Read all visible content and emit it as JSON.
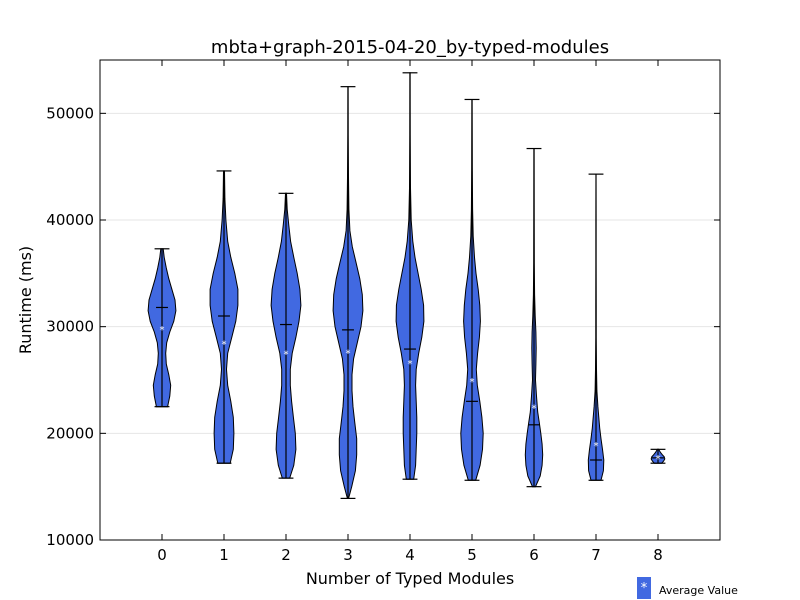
{
  "chart_data": {
    "type": "violin",
    "title": "mbta+graph-2015-04-20_by-typed-modules",
    "xlabel": "Number of Typed Modules",
    "ylabel": "Runtime (ms)",
    "ylim": [
      10000,
      55000
    ],
    "xlim": [
      -1,
      9
    ],
    "yticks": [
      10000,
      20000,
      30000,
      40000,
      50000
    ],
    "categories": [
      "0",
      "1",
      "2",
      "3",
      "4",
      "5",
      "6",
      "7",
      "8"
    ],
    "grid": "horizontal",
    "fill_color": "#4169e1",
    "legend": {
      "label": "Average Value",
      "symbol": "*",
      "position": "below-right"
    },
    "series": [
      {
        "x": 0,
        "min": 22500,
        "max": 37300,
        "median": 31800,
        "mean": 29800,
        "density": [
          [
            22500,
            0.18
          ],
          [
            23500,
            0.25
          ],
          [
            24500,
            0.28
          ],
          [
            25500,
            0.22
          ],
          [
            26500,
            0.14
          ],
          [
            27500,
            0.12
          ],
          [
            28500,
            0.15
          ],
          [
            29500,
            0.25
          ],
          [
            30500,
            0.38
          ],
          [
            31500,
            0.45
          ],
          [
            32500,
            0.42
          ],
          [
            33500,
            0.32
          ],
          [
            34500,
            0.22
          ],
          [
            35500,
            0.14
          ],
          [
            36500,
            0.07
          ],
          [
            37300,
            0.04
          ]
        ]
      },
      {
        "x": 1,
        "min": 17200,
        "max": 44600,
        "median": 31000,
        "mean": 28400,
        "density": [
          [
            17200,
            0.2
          ],
          [
            18500,
            0.3
          ],
          [
            20000,
            0.32
          ],
          [
            21500,
            0.3
          ],
          [
            23000,
            0.22
          ],
          [
            24500,
            0.12
          ],
          [
            26000,
            0.08
          ],
          [
            27500,
            0.12
          ],
          [
            29000,
            0.25
          ],
          [
            30500,
            0.38
          ],
          [
            32000,
            0.45
          ],
          [
            33500,
            0.45
          ],
          [
            35000,
            0.35
          ],
          [
            36500,
            0.22
          ],
          [
            38000,
            0.12
          ],
          [
            40000,
            0.06
          ],
          [
            42000,
            0.03
          ],
          [
            44600,
            0.015
          ]
        ]
      },
      {
        "x": 2,
        "min": 15800,
        "max": 42500,
        "median": 30200,
        "mean": 27500,
        "density": [
          [
            15800,
            0.12
          ],
          [
            17000,
            0.25
          ],
          [
            18500,
            0.32
          ],
          [
            20000,
            0.3
          ],
          [
            21500,
            0.24
          ],
          [
            23000,
            0.18
          ],
          [
            24500,
            0.14
          ],
          [
            26000,
            0.14
          ],
          [
            27500,
            0.2
          ],
          [
            29000,
            0.32
          ],
          [
            30500,
            0.42
          ],
          [
            32000,
            0.48
          ],
          [
            33500,
            0.45
          ],
          [
            35000,
            0.36
          ],
          [
            36500,
            0.25
          ],
          [
            38000,
            0.15
          ],
          [
            39500,
            0.09
          ],
          [
            41000,
            0.04
          ],
          [
            42500,
            0.015
          ]
        ]
      },
      {
        "x": 3,
        "min": 13900,
        "max": 52500,
        "median": 29700,
        "mean": 27600,
        "density": [
          [
            13900,
            0.02
          ],
          [
            15000,
            0.12
          ],
          [
            16500,
            0.24
          ],
          [
            18000,
            0.28
          ],
          [
            19500,
            0.28
          ],
          [
            21000,
            0.22
          ],
          [
            22500,
            0.16
          ],
          [
            24000,
            0.13
          ],
          [
            25500,
            0.13
          ],
          [
            27000,
            0.18
          ],
          [
            28500,
            0.3
          ],
          [
            30000,
            0.42
          ],
          [
            31500,
            0.48
          ],
          [
            33000,
            0.46
          ],
          [
            34500,
            0.38
          ],
          [
            36000,
            0.26
          ],
          [
            37500,
            0.14
          ],
          [
            39000,
            0.06
          ],
          [
            41000,
            0.03
          ],
          [
            44000,
            0.015
          ],
          [
            48000,
            0.008
          ],
          [
            52500,
            0.004
          ]
        ]
      },
      {
        "x": 4,
        "min": 15700,
        "max": 53800,
        "median": 27900,
        "mean": 26600,
        "density": [
          [
            15700,
            0.12
          ],
          [
            17000,
            0.18
          ],
          [
            18500,
            0.2
          ],
          [
            20000,
            0.22
          ],
          [
            21500,
            0.22
          ],
          [
            23000,
            0.2
          ],
          [
            24500,
            0.18
          ],
          [
            26000,
            0.2
          ],
          [
            27500,
            0.28
          ],
          [
            29000,
            0.38
          ],
          [
            30500,
            0.45
          ],
          [
            32000,
            0.44
          ],
          [
            33500,
            0.36
          ],
          [
            35000,
            0.26
          ],
          [
            36500,
            0.16
          ],
          [
            38000,
            0.09
          ],
          [
            40000,
            0.04
          ],
          [
            43000,
            0.015
          ],
          [
            48000,
            0.008
          ],
          [
            53800,
            0.004
          ]
        ]
      },
      {
        "x": 5,
        "min": 15600,
        "max": 51300,
        "median": 23000,
        "mean": 24900,
        "density": [
          [
            15600,
            0.12
          ],
          [
            17000,
            0.26
          ],
          [
            18500,
            0.34
          ],
          [
            20000,
            0.36
          ],
          [
            21500,
            0.32
          ],
          [
            23000,
            0.25
          ],
          [
            24500,
            0.17
          ],
          [
            26000,
            0.14
          ],
          [
            27500,
            0.18
          ],
          [
            29000,
            0.24
          ],
          [
            30500,
            0.27
          ],
          [
            32000,
            0.25
          ],
          [
            33500,
            0.2
          ],
          [
            35000,
            0.13
          ],
          [
            36500,
            0.08
          ],
          [
            38500,
            0.04
          ],
          [
            41000,
            0.02
          ],
          [
            45000,
            0.01
          ],
          [
            51300,
            0.004
          ]
        ]
      },
      {
        "x": 6,
        "min": 15000,
        "max": 46700,
        "median": 20800,
        "mean": 22400,
        "density": [
          [
            15000,
            0.05
          ],
          [
            16000,
            0.2
          ],
          [
            17000,
            0.26
          ],
          [
            18000,
            0.28
          ],
          [
            19000,
            0.26
          ],
          [
            20000,
            0.22
          ],
          [
            21000,
            0.17
          ],
          [
            22000,
            0.12
          ],
          [
            23500,
            0.08
          ],
          [
            25000,
            0.05
          ],
          [
            26500,
            0.06
          ],
          [
            28000,
            0.07
          ],
          [
            29500,
            0.06
          ],
          [
            31000,
            0.04
          ],
          [
            33000,
            0.02
          ],
          [
            36000,
            0.01
          ],
          [
            40000,
            0.006
          ],
          [
            46700,
            0.003
          ]
        ]
      },
      {
        "x": 7,
        "min": 15600,
        "max": 44300,
        "median": 17500,
        "mean": 18900,
        "density": [
          [
            15600,
            0.16
          ],
          [
            16500,
            0.24
          ],
          [
            17500,
            0.25
          ],
          [
            18500,
            0.21
          ],
          [
            19500,
            0.16
          ],
          [
            20500,
            0.12
          ],
          [
            21500,
            0.09
          ],
          [
            22500,
            0.06
          ],
          [
            24000,
            0.03
          ],
          [
            26000,
            0.015
          ],
          [
            29000,
            0.008
          ],
          [
            32000,
            0.005
          ],
          [
            36000,
            0.003
          ],
          [
            40000,
            0.002
          ],
          [
            44300,
            0.001
          ]
        ]
      },
      {
        "x": 8,
        "min": 17200,
        "max": 18500,
        "median": 17700,
        "mean": 17700,
        "density": [
          [
            17200,
            0.12
          ],
          [
            17400,
            0.18
          ],
          [
            17600,
            0.22
          ],
          [
            17800,
            0.2
          ],
          [
            18000,
            0.14
          ],
          [
            18200,
            0.08
          ],
          [
            18500,
            0.02
          ]
        ]
      }
    ]
  }
}
